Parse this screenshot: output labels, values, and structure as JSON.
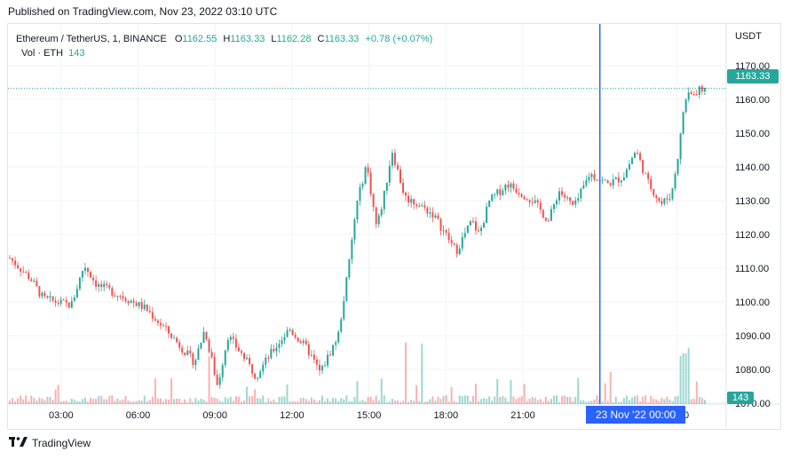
{
  "header": {
    "published": "Published on TradingView.com, Nov 23, 2022 03:10 UTC"
  },
  "legend": {
    "symbol": "Ethereum / TetherUS, 1, BINANCE",
    "o_label": "O",
    "o_value": "1162.55",
    "h_label": "H",
    "h_value": "1163.33",
    "l_label": "L",
    "l_value": "1162.28",
    "c_label": "C",
    "c_value": "1163.33",
    "change": "+0.78 (+0.07%)",
    "vol_label": "Vol · ETH",
    "vol_value": "143"
  },
  "axis": {
    "unit": "USDT"
  },
  "last_price": "1163.33",
  "last_volume": "143",
  "crosshair_label": "23 Nov '22   00:00",
  "footer": {
    "brand": "TradingView"
  },
  "colors": {
    "up": "#26a69a",
    "down": "#ef5350",
    "crosshair": "#2962ff",
    "grid": "#f0f3fa"
  },
  "chart_data": {
    "type": "candlestick",
    "symbol": "ETHUSDT",
    "interval": "1",
    "ylim": [
      1065,
      1172
    ],
    "yticks": [
      1070,
      1080,
      1090,
      1100,
      1110,
      1120,
      1130,
      1140,
      1150,
      1160,
      1170
    ],
    "xticks": [
      "03:00",
      "06:00",
      "09:00",
      "12:00",
      "15:00",
      "18:00",
      "21:00",
      "00:00",
      "03:00"
    ],
    "crosshair_x": "00:00",
    "path_hours": [
      0,
      0.8,
      1.3,
      1.8,
      2.4,
      2.9,
      3.4,
      4.3,
      5.3,
      6.3,
      7.2,
      7.6,
      8.1,
      8.5,
      9.0,
      9.6,
      10.1,
      10.9,
      11.6,
      12.1,
      12.8,
      13.2,
      13.5,
      13.9,
      14.3,
      14.6,
      14.9,
      15.4,
      15.9,
      16.5,
      17.4,
      18.0,
      18.3,
      18.7,
      19.4,
      20.4,
      21.0,
      21.4,
      22.0,
      22.6,
      23.3,
      23.9,
      24.4,
      24.9,
      25.4,
      25.8,
      26.1,
      26.3,
      26.7,
      27.1
    ],
    "path_close": [
      1113,
      1107,
      1101,
      1100,
      1099,
      1111,
      1105,
      1102,
      1098,
      1090,
      1082,
      1092,
      1075,
      1090,
      1085,
      1078,
      1084,
      1092,
      1086,
      1079,
      1090,
      1110,
      1128,
      1141,
      1122,
      1132,
      1145,
      1131,
      1129,
      1126,
      1115,
      1124,
      1120,
      1130,
      1135,
      1130,
      1124,
      1133,
      1128,
      1138,
      1135,
      1137,
      1145,
      1135,
      1129,
      1132,
      1146,
      1160,
      1162,
      1163.33
    ],
    "volume_spikes_hours": [
      7.8,
      15.4,
      16.1,
      26.2,
      26.4
    ]
  }
}
